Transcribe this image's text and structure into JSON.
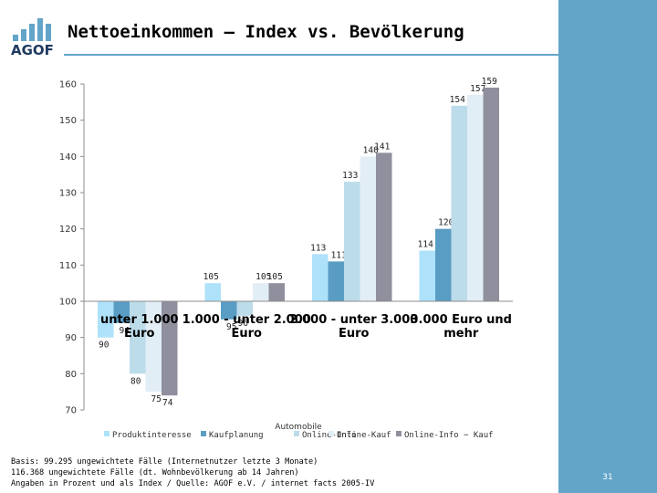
{
  "page": {
    "title": "Nettoeinkommen – Index vs. Bevölkerung",
    "logo_text": "AGOF",
    "page_number": "31",
    "footnote": [
      "Basis: 99.295 ungewichtete Fälle (Internetnutzer letzte 3 Monate)",
      "116.368 ungewichtete Fälle (dt. Wohnbevölkerung ab 14 Jahren)",
      "Angaben in Prozent und als Index / Quelle: AGOF e.V. / internet facts 2005-IV"
    ],
    "colors": {
      "accent": "#63a5c8"
    }
  },
  "chart_data": {
    "type": "bar",
    "title": "",
    "xlabel": "",
    "ylabel": "",
    "ylim": [
      70,
      160
    ],
    "y_ticks": [
      70,
      80,
      90,
      100,
      110,
      120,
      130,
      140,
      150,
      160
    ],
    "baseline": 100,
    "grid": false,
    "legend_position": "bottom",
    "legend_title": "Automobile",
    "categories": [
      "unter 1.000 Euro",
      "1.000 - unter 2.000 Euro",
      "2.000 - unter 3.000 Euro",
      "3.000 Euro und mehr"
    ],
    "series": [
      {
        "name": "Produktinteresse",
        "color": "#aee2fa",
        "values": [
          90,
          105,
          113,
          114
        ]
      },
      {
        "name": "Kaufplanung",
        "color": "#5a9dc4",
        "values": [
          94,
          95,
          111,
          120
        ]
      },
      {
        "name": "Online-Info",
        "color": "#bcdcea",
        "values": [
          80,
          96,
          133,
          154
        ]
      },
      {
        "name": "Online-Kauf",
        "color": "#e2eef5",
        "values": [
          75,
          105,
          140,
          157
        ]
      },
      {
        "name": "Online-Info − Kauf",
        "color": "#8f8f9e",
        "values": [
          74,
          105,
          141,
          159
        ]
      }
    ]
  }
}
